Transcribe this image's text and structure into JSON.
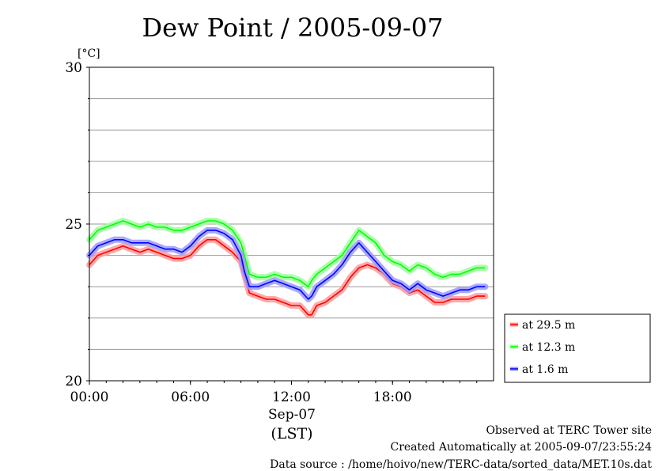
{
  "chart_data": {
    "type": "line",
    "title": "Dew Point / 2005-09-07",
    "ylabel": "[°C]",
    "xlabel": "",
    "ylim": [
      20,
      30
    ],
    "y_ticks": [
      "20",
      "25",
      "30"
    ],
    "y_minor_step": 1,
    "xlim_hours": [
      0,
      24
    ],
    "x_ticks": [
      {
        "hour": 0,
        "label": "00:00"
      },
      {
        "hour": 6,
        "label": "06:00"
      },
      {
        "hour": 12,
        "label": "12:00"
      },
      {
        "hour": 18,
        "label": "18:00"
      }
    ],
    "x_date_label": "Sep-07",
    "x_zone_label": "(LST)",
    "grid": true,
    "legend_position": "right",
    "series": [
      {
        "name": "at 29.5 m",
        "color": "#ff0000",
        "x": [
          0,
          0.5,
          1,
          1.5,
          2,
          2.5,
          3,
          3.5,
          4,
          4.5,
          5,
          5.5,
          6,
          6.5,
          7,
          7.5,
          8,
          8.5,
          9,
          9.2,
          9.5,
          10,
          10.5,
          11,
          11.5,
          12,
          12.5,
          13,
          13.2,
          13.5,
          14,
          14.5,
          15,
          15.5,
          16,
          16.5,
          17,
          17.5,
          18,
          18.5,
          19,
          19.5,
          20,
          20.5,
          21,
          21.5,
          22,
          22.5,
          23,
          23.5
        ],
        "values": [
          23.7,
          24.0,
          24.1,
          24.2,
          24.3,
          24.2,
          24.1,
          24.2,
          24.1,
          24.0,
          23.9,
          23.9,
          24.0,
          24.3,
          24.5,
          24.5,
          24.3,
          24.1,
          23.8,
          23.4,
          22.8,
          22.7,
          22.6,
          22.6,
          22.5,
          22.4,
          22.4,
          22.1,
          22.1,
          22.4,
          22.5,
          22.7,
          22.9,
          23.3,
          23.6,
          23.7,
          23.6,
          23.4,
          23.1,
          23.0,
          22.8,
          22.9,
          22.7,
          22.5,
          22.5,
          22.6,
          22.6,
          22.6,
          22.7,
          22.7
        ]
      },
      {
        "name": "at 12.3 m",
        "color": "#00ff00",
        "x": [
          0,
          0.5,
          1,
          1.5,
          2,
          2.5,
          3,
          3.5,
          4,
          4.5,
          5,
          5.5,
          6,
          6.5,
          7,
          7.5,
          8,
          8.5,
          9,
          9.2,
          9.5,
          10,
          10.5,
          11,
          11.5,
          12,
          12.5,
          13,
          13.2,
          13.5,
          14,
          14.5,
          15,
          15.5,
          16,
          16.5,
          17,
          17.5,
          18,
          18.5,
          19,
          19.5,
          20,
          20.5,
          21,
          21.5,
          22,
          22.5,
          23,
          23.5
        ],
        "values": [
          24.5,
          24.8,
          24.9,
          25.0,
          25.1,
          25.0,
          24.9,
          25.0,
          24.9,
          24.9,
          24.8,
          24.8,
          24.9,
          25.0,
          25.1,
          25.1,
          25.0,
          24.8,
          24.4,
          24.0,
          23.4,
          23.3,
          23.3,
          23.4,
          23.3,
          23.3,
          23.2,
          23.0,
          23.2,
          23.4,
          23.6,
          23.8,
          24.0,
          24.4,
          24.8,
          24.6,
          24.4,
          24.0,
          23.8,
          23.7,
          23.5,
          23.7,
          23.6,
          23.4,
          23.3,
          23.4,
          23.4,
          23.5,
          23.6,
          23.6
        ]
      },
      {
        "name": "at 1.6 m",
        "color": "#0000ff",
        "x": [
          0,
          0.5,
          1,
          1.5,
          2,
          2.5,
          3,
          3.5,
          4,
          4.5,
          5,
          5.5,
          6,
          6.5,
          7,
          7.5,
          8,
          8.5,
          9,
          9.2,
          9.5,
          10,
          10.5,
          11,
          11.5,
          12,
          12.5,
          13,
          13.2,
          13.5,
          14,
          14.5,
          15,
          15.5,
          16,
          16.5,
          17,
          17.5,
          18,
          18.5,
          19,
          19.5,
          20,
          20.5,
          21,
          21.5,
          22,
          22.5,
          23,
          23.5
        ],
        "values": [
          24.0,
          24.3,
          24.4,
          24.5,
          24.5,
          24.4,
          24.4,
          24.4,
          24.3,
          24.2,
          24.2,
          24.1,
          24.3,
          24.6,
          24.8,
          24.8,
          24.7,
          24.5,
          24.0,
          23.5,
          23.0,
          23.0,
          23.1,
          23.2,
          23.1,
          23.0,
          22.9,
          22.6,
          22.7,
          23.0,
          23.2,
          23.4,
          23.7,
          24.1,
          24.4,
          24.1,
          23.8,
          23.5,
          23.2,
          23.1,
          22.9,
          23.1,
          22.9,
          22.8,
          22.7,
          22.8,
          22.9,
          22.9,
          23.0,
          23.0
        ]
      }
    ]
  },
  "footer": {
    "observed": "Observed at TERC Tower site",
    "created": "Created Automatically at 2005-09-07/23:55:24",
    "source": "Data source : /home/hoivo/new/TERC-data/sorted_data/MET.10s.dat"
  }
}
